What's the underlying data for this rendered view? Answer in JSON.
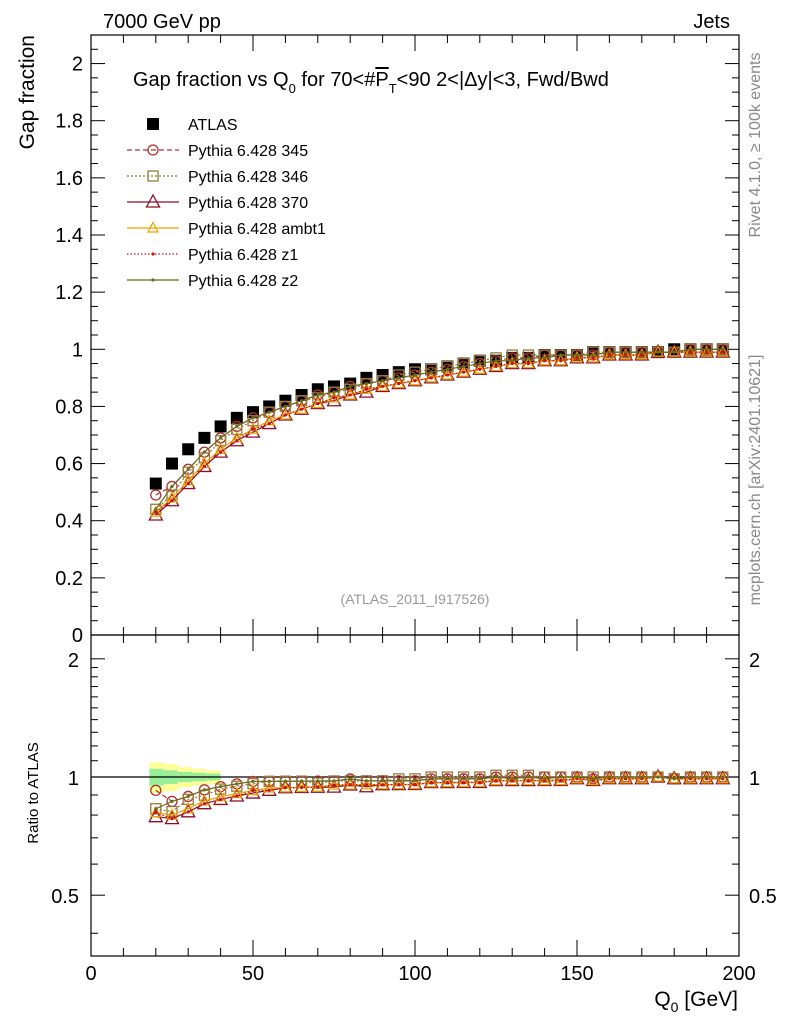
{
  "header": {
    "left": "7000 GeV pp",
    "right": "Jets",
    "side_top": "Rivet 4.1.0, ≥ 100k events",
    "side_bottom": "mcplots.cern.ch [arXiv:2401.10621]"
  },
  "chart_data": [
    {
      "type": "line",
      "panel": "main",
      "title_parts": {
        "a": "Gap fraction vs Q",
        "a_sub": "0",
        "b": " for 70<#",
        "b_over": "P",
        "b_sub": "T",
        "c": "<90  2<|Δy|<3, Fwd/Bwd"
      },
      "ylabel": "Gap fraction",
      "xlabel": "Q",
      "xlabel_sub": "0",
      "xlabel_unit": " [GeV]",
      "watermark": "(ATLAS_2011_I917526)",
      "xlim": [
        0,
        200
      ],
      "ylim": [
        0,
        2.1
      ],
      "x_ticks": [
        0,
        50,
        100,
        150,
        200
      ],
      "y_ticks": [
        0,
        0.2,
        0.4,
        0.6,
        0.8,
        1,
        1.2,
        1.4,
        1.6,
        1.8,
        2
      ],
      "y_tick_labels": [
        "0",
        "0.2",
        "0.4",
        "0.6",
        "0.8",
        "1",
        "1.2",
        "1.4",
        "1.6",
        "1.8",
        "2"
      ],
      "x": [
        20,
        25,
        30,
        35,
        40,
        45,
        50,
        55,
        60,
        65,
        70,
        75,
        80,
        85,
        90,
        95,
        100,
        105,
        110,
        115,
        120,
        125,
        130,
        135,
        140,
        145,
        150,
        155,
        160,
        165,
        170,
        175,
        180,
        185,
        190,
        195
      ],
      "series": [
        {
          "name": "ATLAS",
          "color": "#000000",
          "marker": "filled-square",
          "dash": "none",
          "values": [
            0.53,
            0.6,
            0.65,
            0.69,
            0.73,
            0.76,
            0.78,
            0.8,
            0.82,
            0.84,
            0.86,
            0.87,
            0.88,
            0.9,
            0.91,
            0.92,
            0.93,
            0.93,
            0.94,
            0.95,
            0.96,
            0.96,
            0.97,
            0.97,
            0.98,
            0.98,
            0.98,
            0.99,
            0.99,
            0.99,
            0.99,
            0.99,
            1.0,
            1.0,
            1.0,
            1.0
          ]
        },
        {
          "name": "Pythia 6.428 345",
          "color": "#b03030",
          "marker": "open-circle",
          "dash": "5,3",
          "values": [
            0.49,
            0.52,
            0.58,
            0.64,
            0.69,
            0.73,
            0.76,
            0.78,
            0.8,
            0.82,
            0.84,
            0.85,
            0.87,
            0.88,
            0.89,
            0.9,
            0.91,
            0.92,
            0.93,
            0.94,
            0.95,
            0.96,
            0.97,
            0.97,
            0.98,
            0.98,
            0.98,
            0.98,
            0.99,
            0.99,
            0.99,
            0.99,
            0.99,
            1.0,
            1.0,
            1.0
          ]
        },
        {
          "name": "Pythia 6.428 346",
          "color": "#9a7a3a",
          "marker": "open-square",
          "dash": "2,2",
          "values": [
            0.44,
            0.49,
            0.57,
            0.62,
            0.68,
            0.72,
            0.75,
            0.78,
            0.8,
            0.82,
            0.83,
            0.85,
            0.86,
            0.88,
            0.89,
            0.91,
            0.92,
            0.93,
            0.94,
            0.95,
            0.96,
            0.97,
            0.98,
            0.98,
            0.98,
            0.98,
            0.98,
            0.99,
            0.99,
            0.99,
            0.99,
            0.99,
            0.99,
            1.0,
            1.0,
            1.0
          ]
        },
        {
          "name": "Pythia 6.428 370",
          "color": "#8b0f2a",
          "marker": "open-triangle",
          "dash": "none",
          "values": [
            0.42,
            0.47,
            0.53,
            0.59,
            0.64,
            0.68,
            0.71,
            0.74,
            0.77,
            0.79,
            0.81,
            0.82,
            0.84,
            0.85,
            0.87,
            0.88,
            0.89,
            0.9,
            0.91,
            0.92,
            0.93,
            0.94,
            0.95,
            0.95,
            0.96,
            0.96,
            0.97,
            0.97,
            0.98,
            0.98,
            0.98,
            0.99,
            0.99,
            0.99,
            0.99,
            0.99
          ]
        },
        {
          "name": "Pythia 6.428 ambt1",
          "color": "#f0a000",
          "marker": "open-triangle-small",
          "dash": "none",
          "values": [
            0.43,
            0.48,
            0.54,
            0.6,
            0.65,
            0.69,
            0.72,
            0.75,
            0.77,
            0.79,
            0.81,
            0.83,
            0.84,
            0.86,
            0.87,
            0.88,
            0.89,
            0.9,
            0.91,
            0.92,
            0.93,
            0.94,
            0.95,
            0.95,
            0.96,
            0.96,
            0.97,
            0.97,
            0.98,
            0.98,
            0.98,
            0.99,
            0.99,
            0.99,
            0.99,
            0.99
          ]
        },
        {
          "name": "Pythia 6.428 z1",
          "color": "#d01010",
          "marker": "dot",
          "dash": "1.5,2",
          "values": [
            0.43,
            0.47,
            0.53,
            0.59,
            0.64,
            0.68,
            0.72,
            0.74,
            0.77,
            0.79,
            0.81,
            0.83,
            0.84,
            0.86,
            0.87,
            0.88,
            0.89,
            0.9,
            0.91,
            0.92,
            0.93,
            0.94,
            0.95,
            0.95,
            0.96,
            0.96,
            0.97,
            0.97,
            0.98,
            0.98,
            0.98,
            0.99,
            0.99,
            0.99,
            0.99,
            0.99
          ]
        },
        {
          "name": "Pythia 6.428 z2",
          "color": "#6b6b1a",
          "marker": "dot",
          "dash": "none",
          "values": [
            0.44,
            0.52,
            0.58,
            0.64,
            0.69,
            0.73,
            0.76,
            0.78,
            0.8,
            0.82,
            0.84,
            0.85,
            0.87,
            0.88,
            0.89,
            0.9,
            0.91,
            0.92,
            0.93,
            0.94,
            0.95,
            0.96,
            0.96,
            0.97,
            0.97,
            0.98,
            0.98,
            0.98,
            0.99,
            0.99,
            0.99,
            0.99,
            0.99,
            1.0,
            1.0,
            1.0
          ]
        }
      ]
    },
    {
      "type": "line",
      "panel": "ratio",
      "ylabel": "Ratio to ATLAS",
      "ylim": [
        0.35,
        2.3
      ],
      "y_ticks": [
        0.5,
        1,
        2
      ],
      "y_tick_labels": [
        "0.5",
        "1",
        "2"
      ],
      "band_x_range": [
        18,
        40
      ],
      "band_yellow_halfwidth": [
        0.09,
        0.08,
        0.06,
        0.05,
        0.04
      ],
      "band_green_halfwidth": [
        0.05,
        0.04,
        0.03,
        0.025,
        0.02
      ],
      "note": "ratio values computed as MC / ATLAS from main panel data"
    }
  ]
}
